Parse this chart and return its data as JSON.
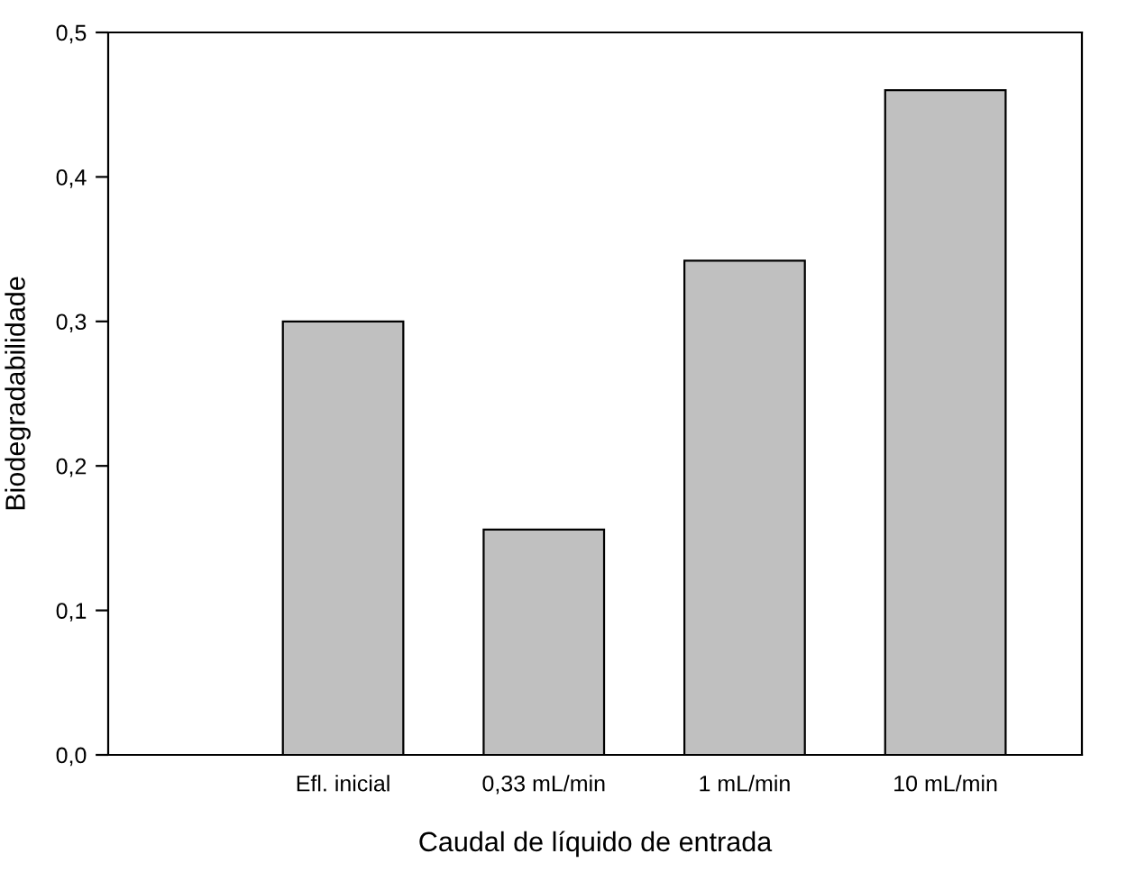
{
  "chart_data": {
    "type": "bar",
    "xlabel": "Caudal de líquido de entrada",
    "ylabel": "Biodegradabilidade",
    "categories": [
      "Efl. inicial",
      "0,33 mL/min",
      "1 mL/min",
      "10 mL/min"
    ],
    "values": [
      0.3,
      0.156,
      0.342,
      0.46
    ],
    "color": "#c0c0c0",
    "ylim": [
      0,
      0.5
    ],
    "yticks": [
      {
        "value": 0,
        "label": "0,0"
      },
      {
        "value": 0.1,
        "label": "0,1"
      },
      {
        "value": 0.2,
        "label": "0,2"
      },
      {
        "value": 0.3,
        "label": "0,3"
      },
      {
        "value": 0.4,
        "label": "0,4"
      },
      {
        "value": 0.5,
        "label": "0,5"
      }
    ]
  }
}
